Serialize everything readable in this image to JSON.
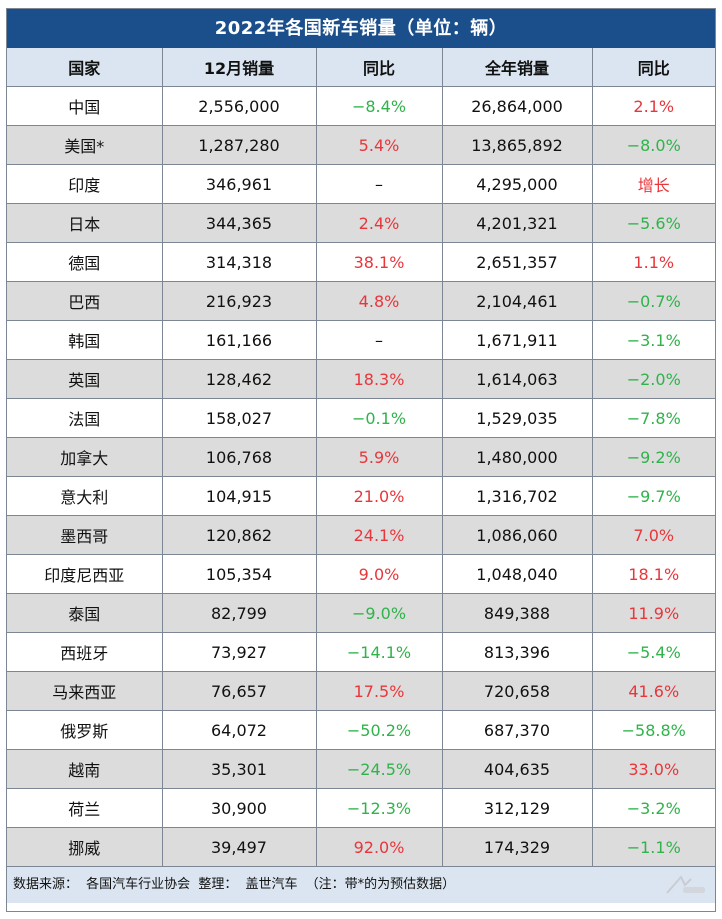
{
  "title": "2022年各国新车销量（单位：辆）",
  "headers": [
    "国家",
    "12月销量",
    "同比",
    "全年销量",
    "同比"
  ],
  "rows": [
    {
      "country": "中国",
      "dec_sales": "2,556,000",
      "dec_yoy": "−8.4%",
      "dec_dir": "down",
      "annual_sales": "26,864,000",
      "annual_yoy": "2.1%",
      "annual_dir": "up"
    },
    {
      "country": "美国*",
      "dec_sales": "1,287,280",
      "dec_yoy": "5.4%",
      "dec_dir": "up",
      "annual_sales": "13,865,892",
      "annual_yoy": "−8.0%",
      "annual_dir": "down"
    },
    {
      "country": "印度",
      "dec_sales": "346,961",
      "dec_yoy": "–",
      "dec_dir": "neutral",
      "annual_sales": "4,295,000",
      "annual_yoy": "增长",
      "annual_dir": "up"
    },
    {
      "country": "日本",
      "dec_sales": "344,365",
      "dec_yoy": "2.4%",
      "dec_dir": "up",
      "annual_sales": "4,201,321",
      "annual_yoy": "−5.6%",
      "annual_dir": "down"
    },
    {
      "country": "德国",
      "dec_sales": "314,318",
      "dec_yoy": "38.1%",
      "dec_dir": "up",
      "annual_sales": "2,651,357",
      "annual_yoy": "1.1%",
      "annual_dir": "up"
    },
    {
      "country": "巴西",
      "dec_sales": "216,923",
      "dec_yoy": "4.8%",
      "dec_dir": "up",
      "annual_sales": "2,104,461",
      "annual_yoy": "−0.7%",
      "annual_dir": "down"
    },
    {
      "country": "韩国",
      "dec_sales": "161,166",
      "dec_yoy": "–",
      "dec_dir": "neutral",
      "annual_sales": "1,671,911",
      "annual_yoy": "−3.1%",
      "annual_dir": "down"
    },
    {
      "country": "英国",
      "dec_sales": "128,462",
      "dec_yoy": "18.3%",
      "dec_dir": "up",
      "annual_sales": "1,614,063",
      "annual_yoy": "−2.0%",
      "annual_dir": "down"
    },
    {
      "country": "法国",
      "dec_sales": "158,027",
      "dec_yoy": "−0.1%",
      "dec_dir": "down",
      "annual_sales": "1,529,035",
      "annual_yoy": "−7.8%",
      "annual_dir": "down"
    },
    {
      "country": "加拿大",
      "dec_sales": "106,768",
      "dec_yoy": "5.9%",
      "dec_dir": "up",
      "annual_sales": "1,480,000",
      "annual_yoy": "−9.2%",
      "annual_dir": "down"
    },
    {
      "country": "意大利",
      "dec_sales": "104,915",
      "dec_yoy": "21.0%",
      "dec_dir": "up",
      "annual_sales": "1,316,702",
      "annual_yoy": "−9.7%",
      "annual_dir": "down"
    },
    {
      "country": "墨西哥",
      "dec_sales": "120,862",
      "dec_yoy": "24.1%",
      "dec_dir": "up",
      "annual_sales": "1,086,060",
      "annual_yoy": "7.0%",
      "annual_dir": "up"
    },
    {
      "country": "印度尼西亚",
      "dec_sales": "105,354",
      "dec_yoy": "9.0%",
      "dec_dir": "up",
      "annual_sales": "1,048,040",
      "annual_yoy": "18.1%",
      "annual_dir": "up"
    },
    {
      "country": "泰国",
      "dec_sales": "82,799",
      "dec_yoy": "−9.0%",
      "dec_dir": "down",
      "annual_sales": "849,388",
      "annual_yoy": "11.9%",
      "annual_dir": "up"
    },
    {
      "country": "西班牙",
      "dec_sales": "73,927",
      "dec_yoy": "−14.1%",
      "dec_dir": "down",
      "annual_sales": "813,396",
      "annual_yoy": "−5.4%",
      "annual_dir": "down"
    },
    {
      "country": "马来西亚",
      "dec_sales": "76,657",
      "dec_yoy": "17.5%",
      "dec_dir": "up",
      "annual_sales": "720,658",
      "annual_yoy": "41.6%",
      "annual_dir": "up"
    },
    {
      "country": "俄罗斯",
      "dec_sales": "64,072",
      "dec_yoy": "−50.2%",
      "dec_dir": "down",
      "annual_sales": "687,370",
      "annual_yoy": "−58.8%",
      "annual_dir": "down"
    },
    {
      "country": "越南",
      "dec_sales": "35,301",
      "dec_yoy": "−24.5%",
      "dec_dir": "down",
      "annual_sales": "404,635",
      "annual_yoy": "33.0%",
      "annual_dir": "up"
    },
    {
      "country": "荷兰",
      "dec_sales": "30,900",
      "dec_yoy": "−12.3%",
      "dec_dir": "down",
      "annual_sales": "312,129",
      "annual_yoy": "−3.2%",
      "annual_dir": "down"
    },
    {
      "country": "挪威",
      "dec_sales": "39,497",
      "dec_yoy": "92.0%",
      "dec_dir": "up",
      "annual_sales": "174,329",
      "annual_yoy": "−1.1%",
      "annual_dir": "down"
    }
  ],
  "footer": {
    "source_label": "数据来源：",
    "source": "各国汽车行业协会",
    "editor_label": "整理：",
    "editor": "盖世汽车",
    "note": "（注：带*的为预估数据）"
  },
  "watermark_icon": "gasgoo-watermark-icon",
  "colors": {
    "title_bg": "#1b4f8c",
    "header_bg": "#dbe5f1",
    "stripe_bg": "#dcdcdc",
    "positive": "#e8363b",
    "negative": "#2fb34a"
  }
}
